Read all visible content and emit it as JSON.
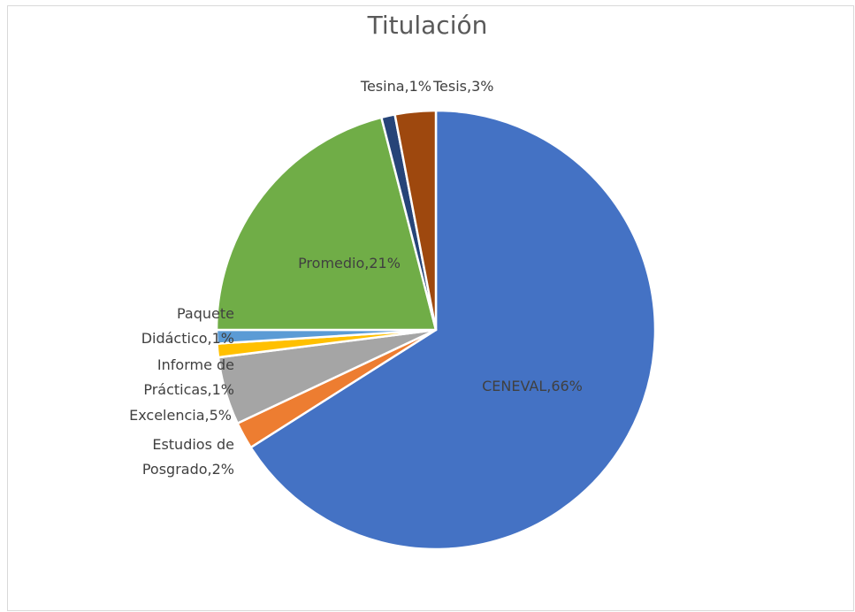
{
  "chart_data": {
    "type": "pie",
    "title": "Titulación",
    "values": [
      66,
      2,
      5,
      1,
      1,
      21,
      1,
      3
    ],
    "value_labels": [
      "CENEVAL,66%",
      "Estudios de Posgrado,2%",
      "Excelencia,5%",
      "Informe de Prácticas,1%",
      "Paquete Didáctico,1%",
      "Promedio,21%",
      "Tesina,1%",
      "Tesis,3%"
    ],
    "colors": [
      "#4472c4",
      "#ed7d31",
      "#a5a5a5",
      "#ffc000",
      "#5b9bd5",
      "#70ad47",
      "#264478",
      "#9e480e"
    ]
  }
}
